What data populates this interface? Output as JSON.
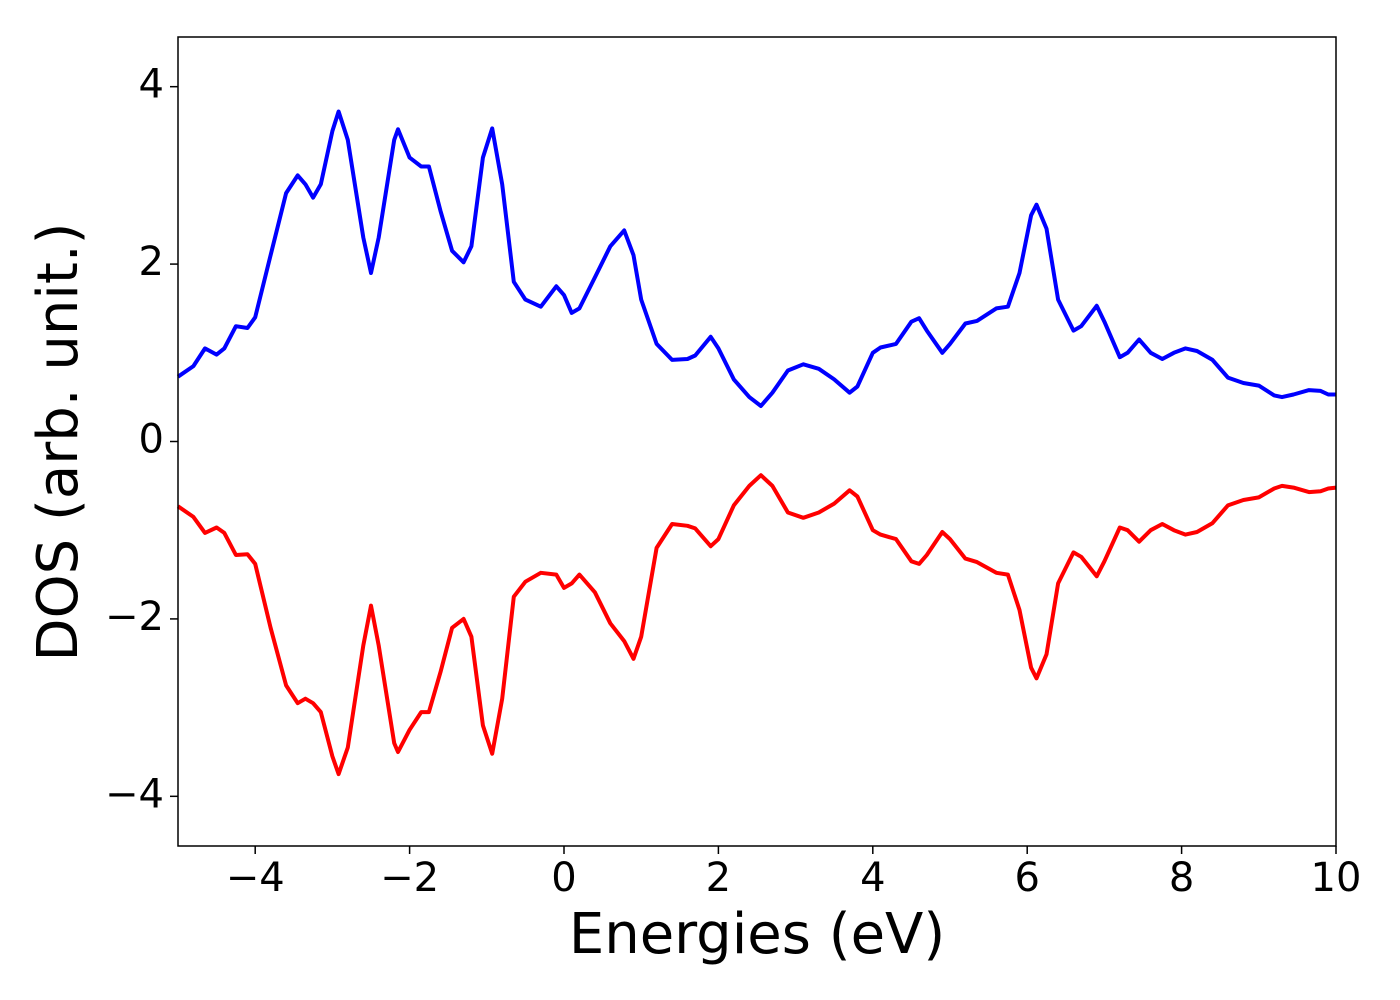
{
  "chart_data": {
    "type": "line",
    "xlabel": "Energies (eV)",
    "ylabel": "DOS (arb. unit.)",
    "x": [
      -5,
      -4.8,
      -4.65,
      -4.5,
      -4.4,
      -4.25,
      -4.1,
      -4.0,
      -3.8,
      -3.6,
      -3.45,
      -3.35,
      -3.25,
      -3.15,
      -3.0,
      -2.92,
      -2.8,
      -2.6,
      -2.5,
      -2.4,
      -2.2,
      -2.15,
      -2.0,
      -1.85,
      -1.75,
      -1.6,
      -1.45,
      -1.3,
      -1.2,
      -1.05,
      -0.93,
      -0.8,
      -0.65,
      -0.5,
      -0.3,
      -0.1,
      0.0,
      0.1,
      0.2,
      0.4,
      0.6,
      0.78,
      0.9,
      1.0,
      1.2,
      1.4,
      1.6,
      1.7,
      1.9,
      2.0,
      2.2,
      2.4,
      2.55,
      2.7,
      2.9,
      3.1,
      3.3,
      3.5,
      3.7,
      3.8,
      4.0,
      4.1,
      4.3,
      4.5,
      4.6,
      4.7,
      4.9,
      5.0,
      5.2,
      5.35,
      5.6,
      5.75,
      5.9,
      6.05,
      6.12,
      6.25,
      6.4,
      6.6,
      6.7,
      6.9,
      7.0,
      7.2,
      7.3,
      7.45,
      7.6,
      7.75,
      7.9,
      8.05,
      8.2,
      8.4,
      8.6,
      8.8,
      9.0,
      9.2,
      9.3,
      9.45,
      9.65,
      9.8,
      9.9,
      10.0
    ],
    "series": [
      {
        "color": "#0000ff",
        "values": [
          0.73,
          0.85,
          1.05,
          0.98,
          1.05,
          1.3,
          1.28,
          1.4,
          2.1,
          2.8,
          3.0,
          2.9,
          2.75,
          2.9,
          3.5,
          3.72,
          3.4,
          2.3,
          1.9,
          2.3,
          3.4,
          3.52,
          3.2,
          3.1,
          3.1,
          2.6,
          2.15,
          2.02,
          2.2,
          3.2,
          3.53,
          2.9,
          1.8,
          1.6,
          1.52,
          1.75,
          1.65,
          1.45,
          1.5,
          1.85,
          2.2,
          2.38,
          2.1,
          1.6,
          1.1,
          0.92,
          0.93,
          0.97,
          1.18,
          1.05,
          0.7,
          0.5,
          0.4,
          0.55,
          0.8,
          0.87,
          0.82,
          0.7,
          0.55,
          0.62,
          1.0,
          1.06,
          1.1,
          1.35,
          1.39,
          1.25,
          1.0,
          1.1,
          1.33,
          1.36,
          1.5,
          1.52,
          1.9,
          2.55,
          2.67,
          2.4,
          1.6,
          1.25,
          1.3,
          1.53,
          1.35,
          0.95,
          1.0,
          1.15,
          1.0,
          0.93,
          1.0,
          1.05,
          1.02,
          0.92,
          0.72,
          0.66,
          0.63,
          0.52,
          0.5,
          0.53,
          0.58,
          0.57,
          0.53,
          0.53
        ]
      },
      {
        "color": "#ff0000",
        "values": [
          -0.73,
          -0.85,
          -1.03,
          -0.97,
          -1.03,
          -1.28,
          -1.27,
          -1.38,
          -2.1,
          -2.75,
          -2.95,
          -2.9,
          -2.95,
          -3.05,
          -3.55,
          -3.75,
          -3.45,
          -2.3,
          -1.85,
          -2.3,
          -3.4,
          -3.5,
          -3.25,
          -3.05,
          -3.05,
          -2.6,
          -2.1,
          -2.0,
          -2.2,
          -3.2,
          -3.52,
          -2.9,
          -1.75,
          -1.58,
          -1.48,
          -1.5,
          -1.65,
          -1.6,
          -1.5,
          -1.7,
          -2.05,
          -2.25,
          -2.45,
          -2.2,
          -1.2,
          -0.93,
          -0.95,
          -0.98,
          -1.18,
          -1.1,
          -0.72,
          -0.5,
          -0.38,
          -0.5,
          -0.8,
          -0.86,
          -0.8,
          -0.7,
          -0.55,
          -0.62,
          -1.0,
          -1.05,
          -1.1,
          -1.35,
          -1.38,
          -1.28,
          -1.02,
          -1.1,
          -1.32,
          -1.36,
          -1.48,
          -1.5,
          -1.9,
          -2.55,
          -2.67,
          -2.4,
          -1.6,
          -1.25,
          -1.3,
          -1.52,
          -1.35,
          -0.97,
          -1.0,
          -1.13,
          -1.0,
          -0.93,
          -1.0,
          -1.05,
          -1.02,
          -0.92,
          -0.72,
          -0.66,
          -0.63,
          -0.53,
          -0.5,
          -0.52,
          -0.57,
          -0.56,
          -0.53,
          -0.52
        ]
      }
    ],
    "xlim": [
      -5,
      10
    ],
    "xticks": [
      {
        "value": -4,
        "label": "−4"
      },
      {
        "value": -2,
        "label": "−2"
      },
      0,
      2,
      4,
      6,
      8,
      10
    ],
    "ylim": [
      -4.56,
      4.56
    ],
    "yticks": [
      {
        "value": -4,
        "label": "−4"
      },
      {
        "value": -2,
        "label": "−2"
      },
      0,
      2,
      4
    ],
    "grid": false
  }
}
